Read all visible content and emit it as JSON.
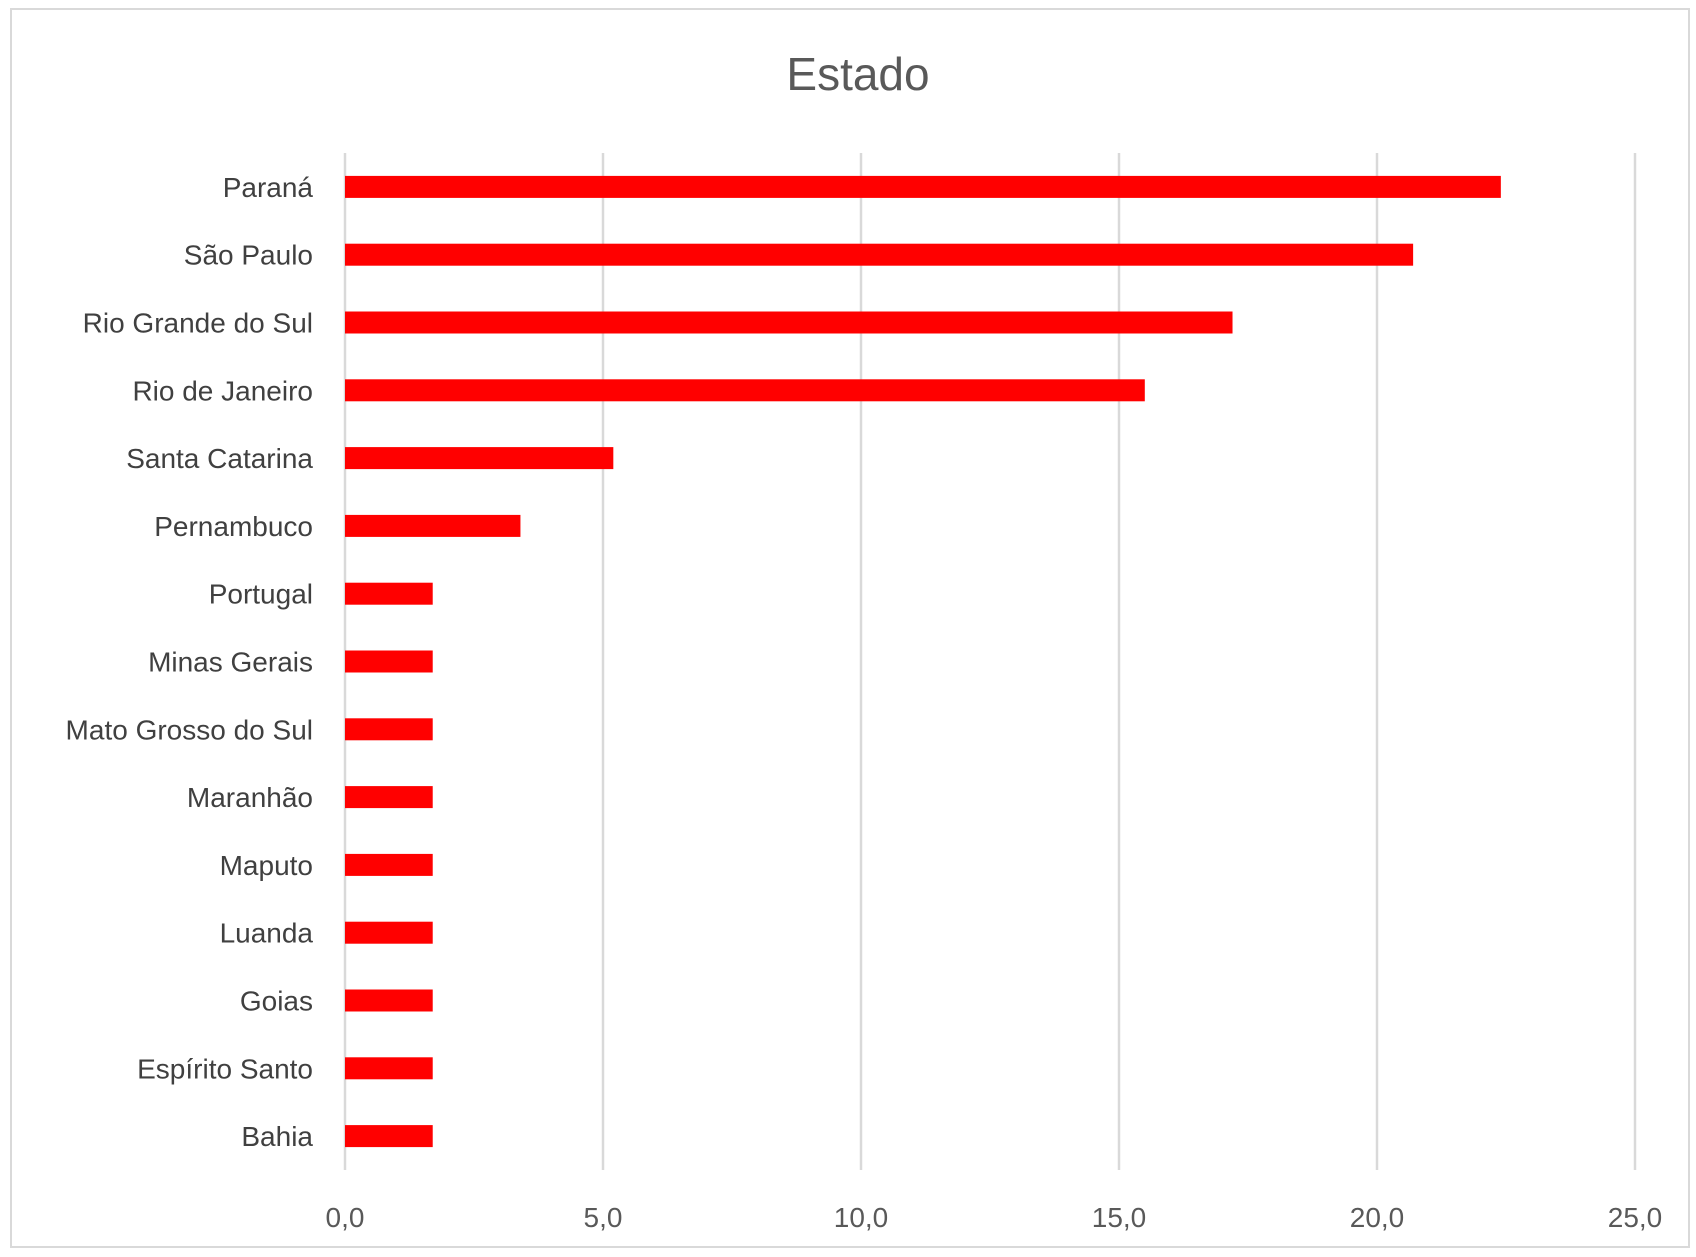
{
  "chart_data": {
    "type": "bar",
    "orientation": "horizontal",
    "title": "Estado",
    "categories": [
      "Paraná",
      "São Paulo",
      "Rio Grande do Sul",
      "Rio de Janeiro",
      "Santa Catarina",
      "Pernambuco",
      "Portugal",
      "Minas Gerais",
      "Mato Grosso do Sul",
      "Maranhão",
      "Maputo",
      "Luanda",
      "Goias",
      "Espírito Santo",
      "Bahia"
    ],
    "values": [
      22.4,
      20.7,
      17.2,
      15.5,
      5.2,
      3.4,
      1.7,
      1.7,
      1.7,
      1.7,
      1.7,
      1.7,
      1.7,
      1.7,
      1.7
    ],
    "xlim": [
      0,
      25
    ],
    "xticks": [
      0,
      5,
      10,
      15,
      20,
      25
    ],
    "xtick_labels": [
      "0,0",
      "5,0",
      "10,0",
      "15,0",
      "20,0",
      "25,0"
    ],
    "xlabel": "",
    "ylabel": "",
    "grid": "vertical",
    "legend": "none",
    "bar_color": "#ff0000",
    "grid_color": "#d9d9d9"
  }
}
